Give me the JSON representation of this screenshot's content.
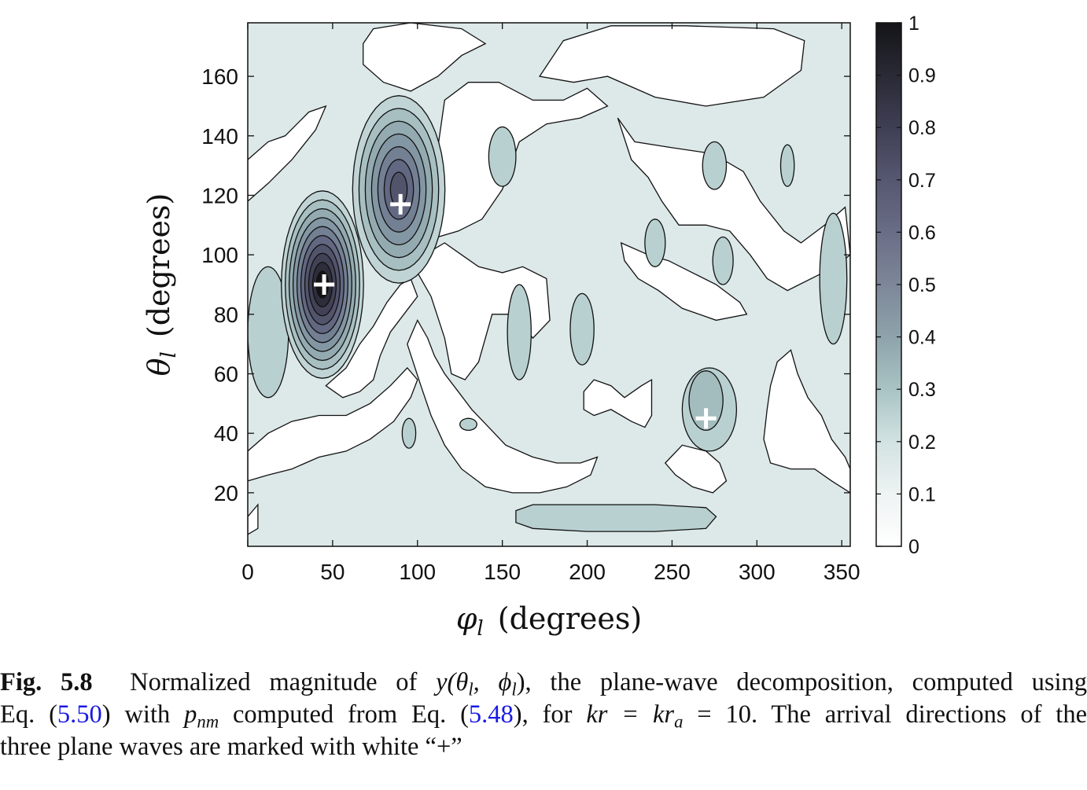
{
  "chart_data": {
    "type": "heatmap",
    "subtype": "filled contour",
    "xlabel": "(degrees)",
    "xlabel_symbol": "φ",
    "xlabel_sub": "l",
    "ylabel": "(degrees)",
    "ylabel_symbol": "θ",
    "ylabel_sub": "l",
    "xlim": [
      0,
      355
    ],
    "ylim": [
      2,
      178
    ],
    "x_ticks": [
      0,
      50,
      100,
      150,
      200,
      250,
      300,
      350
    ],
    "y_ticks": [
      20,
      40,
      60,
      80,
      100,
      120,
      140,
      160
    ],
    "colorbar": {
      "range": [
        0,
        1
      ],
      "ticks": [
        0,
        0.1,
        0.2,
        0.3,
        0.4,
        0.5,
        0.6,
        0.7,
        0.8,
        0.9,
        1
      ],
      "tick_labels": [
        "0",
        "0.1",
        "0.2",
        "0.3",
        "0.4",
        "0.5",
        "0.6",
        "0.7",
        "0.8",
        "0.9",
        "1"
      ],
      "colormap": "white to dark slate grey",
      "color_low": "#ffffff",
      "color_high": "#141418"
    },
    "contour_levels": [
      0.1,
      0.2,
      0.3,
      0.4,
      0.5,
      0.6,
      0.7,
      0.8,
      0.9
    ],
    "peaks": [
      {
        "phi": 45,
        "theta": 90,
        "value": 1.0
      },
      {
        "phi": 90,
        "theta": 117,
        "value": 0.63
      },
      {
        "phi": 270,
        "theta": 45,
        "value": 0.32
      }
    ],
    "markers": [
      {
        "phi": 45,
        "theta": 90,
        "symbol": "+",
        "color": "#ffffff"
      },
      {
        "phi": 90,
        "theta": 117,
        "symbol": "+",
        "color": "#ffffff"
      },
      {
        "phi": 270,
        "theta": 45,
        "symbol": "+",
        "color": "#ffffff"
      }
    ]
  },
  "caption": {
    "label": "Fig. 5.8",
    "line1": "Normalized magnitude of",
    "func": "y(θ",
    "func_sub1": "l",
    "func_mid": ", ϕ",
    "func_sub2": "l",
    "func_end": "),",
    "line1_rest": "the plane-wave decomposition, computed using",
    "line2_a": "Eq. (",
    "ref1": "5.50",
    "line2_b": ") with",
    "p_sym": "p",
    "p_sub": "nm",
    "line2_c": "computed from Eq. (",
    "ref2": "5.48",
    "line2_d": "), for",
    "kr": "kr = kr",
    "kr_sub": "a",
    "line2_e": "= 10. The arrival directions of the",
    "line3": "three plane waves are marked with white “+”"
  }
}
